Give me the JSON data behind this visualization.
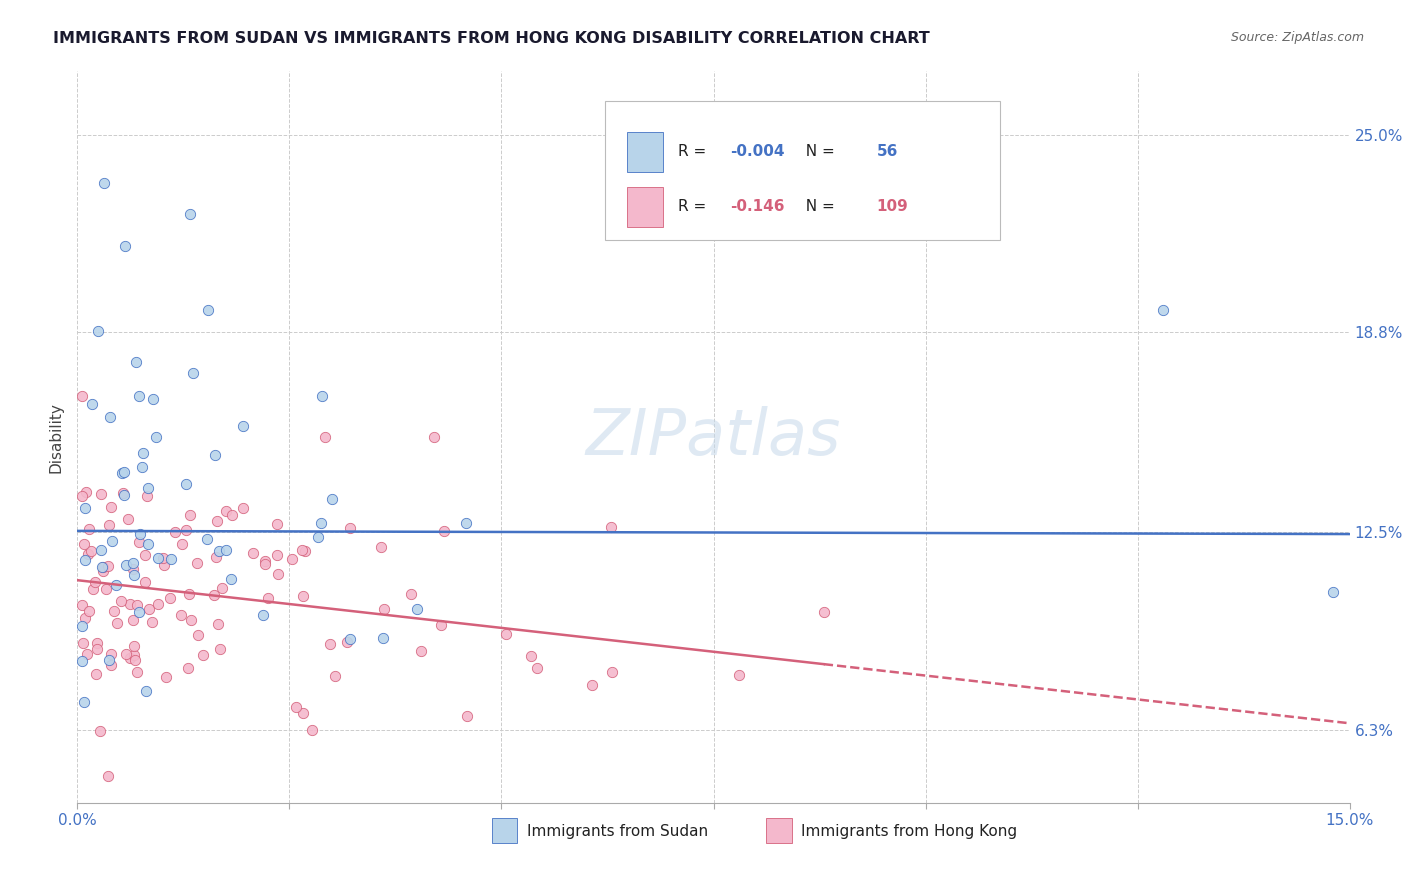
{
  "title": "IMMIGRANTS FROM SUDAN VS IMMIGRANTS FROM HONG KONG DISABILITY CORRELATION CHART",
  "source": "Source: ZipAtlas.com",
  "ylabel": "Disability",
  "xlim": [
    0.0,
    0.15
  ],
  "ylim": [
    0.04,
    0.27
  ],
  "ytick_positions": [
    0.063,
    0.125,
    0.188,
    0.25
  ],
  "ytick_labels": [
    "6.3%",
    "12.5%",
    "18.8%",
    "25.0%"
  ],
  "sudan_R": -0.004,
  "sudan_N": 56,
  "sudan_color": "#b8d4ea",
  "sudan_edge_color": "#4472c4",
  "sudan_line_color": "#4472c4",
  "hk_R": -0.146,
  "hk_N": 109,
  "hk_color": "#f4b8cc",
  "hk_edge_color": "#d4607a",
  "hk_line_color": "#d4607a",
  "watermark": "ZIPatlas",
  "background_color": "#ffffff",
  "grid_color": "#cccccc",
  "title_color": "#1a1a2e",
  "source_color": "#666666",
  "tick_color": "#4472c4",
  "ylabel_color": "#444444"
}
